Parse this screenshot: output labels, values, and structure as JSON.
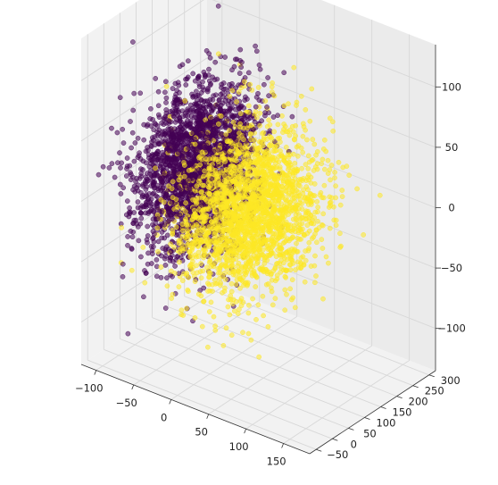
{
  "chart_data": {
    "type": "scatter",
    "projection": "3d",
    "title": "",
    "xlabel": "",
    "ylabel": "",
    "zlabel": "",
    "grid": true,
    "legend": "none",
    "xlim": [
      -120,
      185
    ],
    "ylim": [
      -70,
      320
    ],
    "zlim": [
      -135,
      135
    ],
    "x_ticks": [
      "−100",
      "−50",
      "0",
      "50",
      "100",
      "150"
    ],
    "y_ticks": [
      "−50",
      "0",
      "50",
      "100",
      "150",
      "200",
      "250",
      "300"
    ],
    "z_ticks": [
      "−100",
      "−50",
      "0",
      "50",
      "100"
    ],
    "series": [
      {
        "color": "#440154",
        "point_count_estimate": 2500,
        "center": {
          "x": -50,
          "y": 130,
          "z": 10
        },
        "spread": {
          "x": 25,
          "y": 80,
          "z": 30
        }
      },
      {
        "color": "#fde725",
        "point_count_estimate": 2500,
        "center": {
          "x": 20,
          "y": 120,
          "z": -5
        },
        "spread": {
          "x": 35,
          "y": 80,
          "z": 30
        }
      }
    ]
  }
}
